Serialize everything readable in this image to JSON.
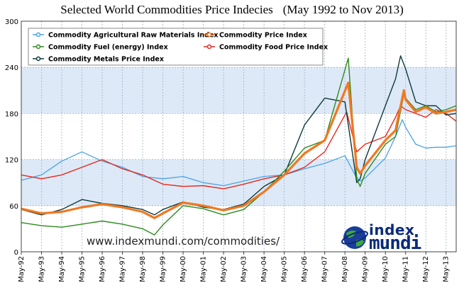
{
  "title": {
    "main": "Selected World Commodities Price Indecies",
    "range": "(May 1992 to Nov 2013)"
  },
  "watermark_site": "www.indexmundi.com",
  "watermark_path": "/commodities/",
  "logo": {
    "word1": "index",
    "word2": "mundi"
  },
  "colors": {
    "agricultural": "#4aa3e6",
    "fuel": "#2e8b1e",
    "metals": "#0d3b3b",
    "price": "#f07820",
    "food": "#e8281c",
    "band": "#dde9f7",
    "grid": "#9fb0c8"
  },
  "chart_data": {
    "type": "line",
    "title": "Selected World Commodities Price Indecies",
    "subtitle": "(May 1992 to Nov 2013)",
    "xlabel": "",
    "ylabel": "",
    "ylim": [
      0,
      300
    ],
    "yticks": [
      "0",
      "60",
      "120",
      "180",
      "240",
      "300"
    ],
    "x_tick_labels": [
      "May-92",
      "May-93",
      "May-94",
      "May-95",
      "May-96",
      "May-97",
      "May-98",
      "May-99",
      "May-00",
      "May-01",
      "May-02",
      "May-03",
      "May-04",
      "May-05",
      "May-06",
      "May-07",
      "May-08",
      "May-09",
      "May-10",
      "May-11",
      "May-12",
      "May-13"
    ],
    "x_range": [
      "May-92",
      "Nov-13"
    ],
    "grid": true,
    "legend_position": "top-left",
    "series": [
      {
        "name": "Commodity Agricultural Raw Materials Index",
        "x": [
          "May-92",
          "May-93",
          "May-94",
          "May-95",
          "Nov-95",
          "May-96",
          "May-97",
          "May-98",
          "May-99",
          "May-00",
          "May-01",
          "May-02",
          "May-03",
          "May-04",
          "May-05",
          "May-06",
          "May-07",
          "May-08",
          "Nov-08",
          "Feb-09",
          "May-09",
          "May-10",
          "Nov-10",
          "Mar-11",
          "May-11",
          "Nov-11",
          "May-12",
          "Nov-12",
          "May-13",
          "Nov-13"
        ],
        "values": [
          93,
          100,
          118,
          130,
          124,
          118,
          110,
          98,
          95,
          98,
          90,
          86,
          92,
          98,
          100,
          108,
          115,
          125,
          100,
          92,
          96,
          122,
          150,
          172,
          162,
          140,
          135,
          136,
          136,
          138
        ]
      },
      {
        "name": "Commodity Fuel (energy) Index",
        "x": [
          "May-92",
          "May-93",
          "May-94",
          "May-95",
          "May-96",
          "May-97",
          "May-98",
          "Dec-98",
          "May-99",
          "May-00",
          "May-01",
          "May-02",
          "May-03",
          "May-04",
          "May-05",
          "May-06",
          "May-07",
          "Jul-08",
          "Dec-08",
          "Feb-09",
          "May-09",
          "May-10",
          "Nov-10",
          "Apr-11",
          "May-11",
          "Nov-11",
          "May-12",
          "Nov-12",
          "May-13",
          "Nov-13"
        ],
        "values": [
          38,
          34,
          32,
          36,
          40,
          36,
          30,
          22,
          35,
          60,
          56,
          48,
          55,
          78,
          105,
          135,
          145,
          252,
          95,
          85,
          102,
          140,
          150,
          205,
          200,
          185,
          190,
          182,
          185,
          190
        ]
      },
      {
        "name": "Commodity Price Index",
        "x": [
          "May-92",
          "May-93",
          "May-94",
          "May-95",
          "May-96",
          "May-97",
          "May-98",
          "Dec-98",
          "May-99",
          "May-00",
          "May-01",
          "May-02",
          "May-03",
          "May-04",
          "May-05",
          "May-06",
          "May-07",
          "Jul-08",
          "Dec-08",
          "Feb-09",
          "May-09",
          "May-10",
          "Nov-10",
          "Apr-11",
          "May-11",
          "Nov-11",
          "May-12",
          "Nov-12",
          "May-13",
          "Nov-13"
        ],
        "values": [
          56,
          50,
          52,
          58,
          62,
          58,
          52,
          44,
          50,
          64,
          60,
          54,
          60,
          78,
          100,
          128,
          145,
          220,
          110,
          102,
          112,
          145,
          158,
          210,
          198,
          182,
          188,
          180,
          182,
          185
        ]
      },
      {
        "name": "Commodity Food Price Index",
        "x": [
          "May-92",
          "May-93",
          "May-94",
          "May-95",
          "May-96",
          "May-97",
          "May-98",
          "May-99",
          "May-00",
          "May-01",
          "May-02",
          "May-03",
          "May-04",
          "May-05",
          "May-06",
          "May-07",
          "Jun-08",
          "Dec-08",
          "May-09",
          "May-10",
          "Nov-10",
          "Feb-11",
          "May-11",
          "Nov-11",
          "May-12",
          "Nov-12",
          "May-13",
          "Nov-13"
        ],
        "values": [
          100,
          95,
          100,
          110,
          120,
          108,
          100,
          88,
          85,
          86,
          82,
          88,
          95,
          100,
          110,
          130,
          182,
          130,
          140,
          150,
          175,
          190,
          185,
          180,
          175,
          185,
          180,
          170
        ]
      },
      {
        "name": "Commodity Metals Price Index",
        "x": [
          "May-92",
          "May-93",
          "May-94",
          "May-95",
          "May-96",
          "May-97",
          "May-98",
          "Dec-98",
          "May-99",
          "May-00",
          "May-01",
          "May-02",
          "May-03",
          "May-04",
          "May-05",
          "May-06",
          "May-07",
          "May-08",
          "Dec-08",
          "Feb-09",
          "May-09",
          "May-10",
          "Nov-10",
          "Feb-11",
          "May-11",
          "Nov-11",
          "May-12",
          "Nov-12",
          "May-13",
          "Nov-13"
        ],
        "values": [
          55,
          48,
          55,
          68,
          63,
          60,
          55,
          48,
          55,
          65,
          58,
          55,
          62,
          85,
          100,
          165,
          200,
          195,
          90,
          95,
          120,
          190,
          225,
          255,
          238,
          195,
          190,
          190,
          178,
          180
        ]
      }
    ]
  }
}
